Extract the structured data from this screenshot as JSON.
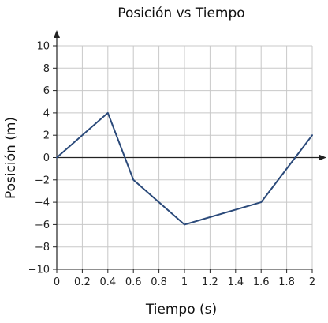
{
  "chart_data": {
    "type": "line",
    "title": "Posición vs Tiempo",
    "xlabel": "Tiempo (s)",
    "ylabel": "Posición (m)",
    "xlim": [
      0,
      2
    ],
    "ylim": [
      -10,
      10
    ],
    "x_ticks": [
      "0",
      "0.2",
      "0.4",
      "0.6",
      "0.8",
      "1",
      "1.2",
      "1.4",
      "1.6",
      "1.8",
      "2"
    ],
    "y_ticks": [
      "10",
      "8",
      "6",
      "4",
      "2",
      "0",
      "−2",
      "−4",
      "−6",
      "−8",
      "−10"
    ],
    "grid": true,
    "series": [
      {
        "x": [
          0,
          0.4,
          0.6,
          1.0,
          1.6,
          2.0
        ],
        "y": [
          0,
          4,
          -2,
          -6,
          -4,
          2
        ]
      }
    ]
  },
  "colors": {
    "line": "#2b4a7a",
    "grid": "#c8c8c8",
    "axis": "#222222"
  }
}
